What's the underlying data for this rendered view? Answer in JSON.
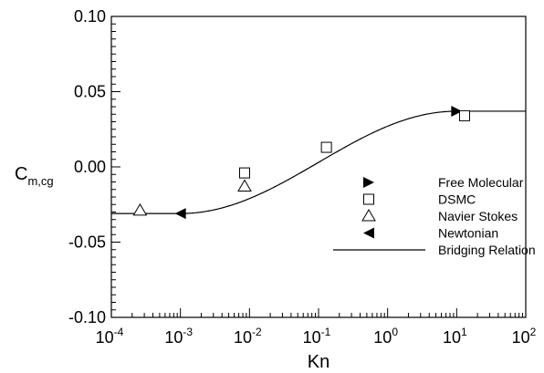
{
  "chart_data": {
    "type": "scatter",
    "xscale": "log",
    "xlim": [
      0.0001,
      100
    ],
    "ylim": [
      -0.1,
      0.1
    ],
    "xlabel": "Kn",
    "ylabel": {
      "main": "C",
      "sub": "m,cg"
    },
    "grid": false,
    "legend_position": "right",
    "xticks": [
      {
        "value": 0.0001,
        "base": "10",
        "exp": "-4"
      },
      {
        "value": 0.001,
        "base": "10",
        "exp": "-3"
      },
      {
        "value": 0.01,
        "base": "10",
        "exp": "-2"
      },
      {
        "value": 0.1,
        "base": "10",
        "exp": "-1"
      },
      {
        "value": 1,
        "base": "10",
        "exp": "0"
      },
      {
        "value": 10,
        "base": "10",
        "exp": "1"
      },
      {
        "value": 100,
        "base": "10",
        "exp": "2"
      }
    ],
    "yticks": [
      {
        "value": 0.1,
        "label": "0.10"
      },
      {
        "value": 0.05,
        "label": "0.05"
      },
      {
        "value": 0.0,
        "label": "0.00"
      },
      {
        "value": -0.05,
        "label": "-0.05"
      },
      {
        "value": -0.1,
        "label": "-0.10"
      }
    ],
    "series": [
      {
        "name": "Free Molecular",
        "marker": "triangle-right-filled",
        "points": [
          {
            "x": 10,
            "y": 0.037
          }
        ]
      },
      {
        "name": "DSMC",
        "marker": "square-open",
        "points": [
          {
            "x": 0.0085,
            "y": -0.004
          },
          {
            "x": 0.13,
            "y": 0.013
          },
          {
            "x": 13,
            "y": 0.034
          }
        ]
      },
      {
        "name": "Navier Stokes",
        "marker": "triangle-up-open",
        "points": [
          {
            "x": 0.00026,
            "y": -0.029
          },
          {
            "x": 0.0085,
            "y": -0.013
          }
        ]
      },
      {
        "name": "Newtonian",
        "marker": "triangle-left-filled",
        "points": [
          {
            "x": 0.001,
            "y": -0.031
          }
        ]
      },
      {
        "name": "Bridging Relation",
        "marker": "line",
        "curve": {
          "y_low": -0.031,
          "y_high": 0.037,
          "kn_low": 0.001,
          "kn_high": 10
        }
      }
    ]
  }
}
